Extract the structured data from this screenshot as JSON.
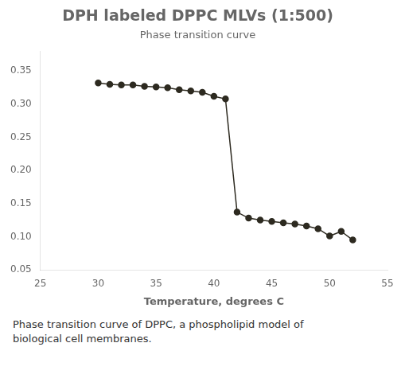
{
  "chart_data": {
    "type": "line",
    "title": "DPH labeled DPPC MLVs (1:500)",
    "subtitle": "Phase transition curve",
    "xlabel": "Temperature, degrees C",
    "caption": "Phase transition curve of DPPC, a phospholipid model of\nbiological cell membranes.",
    "x": [
      30,
      31,
      32,
      33,
      34,
      35,
      36,
      37,
      38,
      39,
      40,
      41,
      42,
      43,
      44,
      45,
      46,
      47,
      48,
      49,
      50,
      51,
      52
    ],
    "values": [
      0.332,
      0.33,
      0.329,
      0.329,
      0.327,
      0.326,
      0.325,
      0.322,
      0.32,
      0.318,
      0.312,
      0.308,
      0.137,
      0.128,
      0.125,
      0.123,
      0.121,
      0.119,
      0.116,
      0.112,
      0.101,
      0.108,
      0.095
    ],
    "xlim": [
      25,
      55
    ],
    "ylim": [
      0.05,
      0.38
    ],
    "xticks": [
      25,
      30,
      35,
      40,
      45,
      50,
      55
    ],
    "yticks": [
      0.05,
      {
        "value": 0.1,
        "label": "0.10"
      },
      0.15,
      {
        "value": 0.2,
        "label": "0.20"
      },
      0.25,
      {
        "value": 0.3,
        "label": "0.30"
      },
      0.35
    ],
    "color": "#2d2a20",
    "marker": "circle",
    "grid": false
  }
}
